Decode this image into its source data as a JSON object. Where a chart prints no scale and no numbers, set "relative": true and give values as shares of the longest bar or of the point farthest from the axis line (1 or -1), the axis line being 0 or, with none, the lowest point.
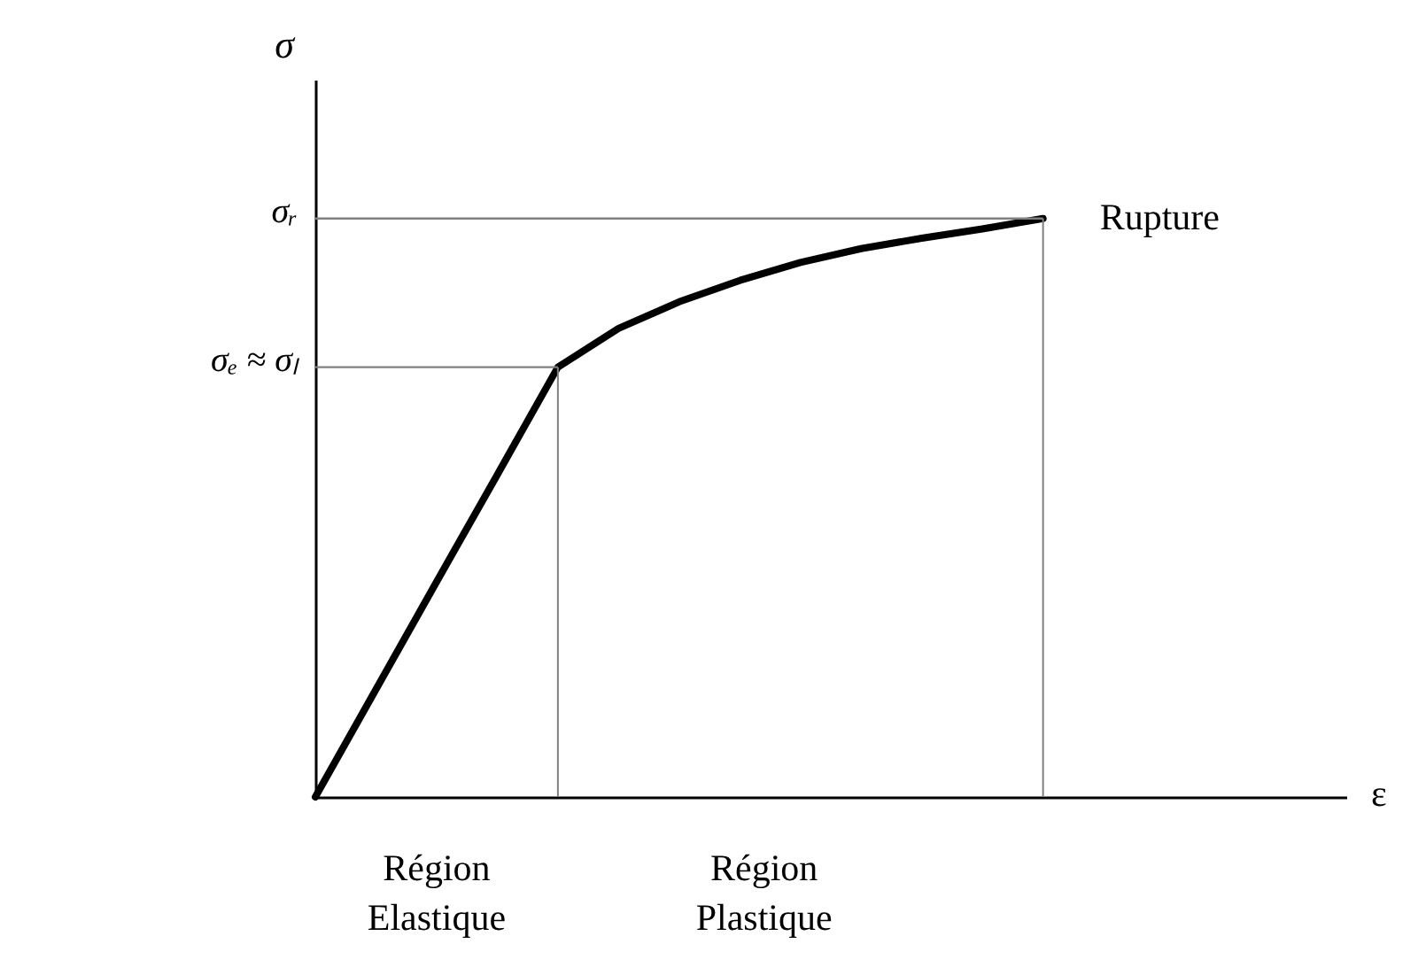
{
  "chart_data": {
    "type": "line",
    "relative": true,
    "ylabel": "σ",
    "categories": [
      null,
      null,
      null,
      null,
      null,
      null,
      null,
      null,
      null,
      null,
      null,
      null,
      null
    ],
    "series": [
      {
        "color": "#000000",
        "values": [
          0,
          0.186,
          0.372,
          0.557,
          0.743,
          0.81,
          0.856,
          0.893,
          0.924,
          0.948,
          0.966,
          0.982,
          1
        ]
      }
    ],
    "ref_lines": [
      {
        "axis": "y",
        "value": 1,
        "label": "σᵣ",
        "color": "#808080"
      },
      {
        "axis": "y",
        "value": 0.743,
        "label": "σₑ ≈ σₗ",
        "color": "#808080"
      }
    ],
    "annotations": [
      "Rupture",
      "Région Elastique",
      "Région Plastique",
      "ε"
    ],
    "grid": false,
    "marker": "none",
    "line_style": "solid"
  }
}
